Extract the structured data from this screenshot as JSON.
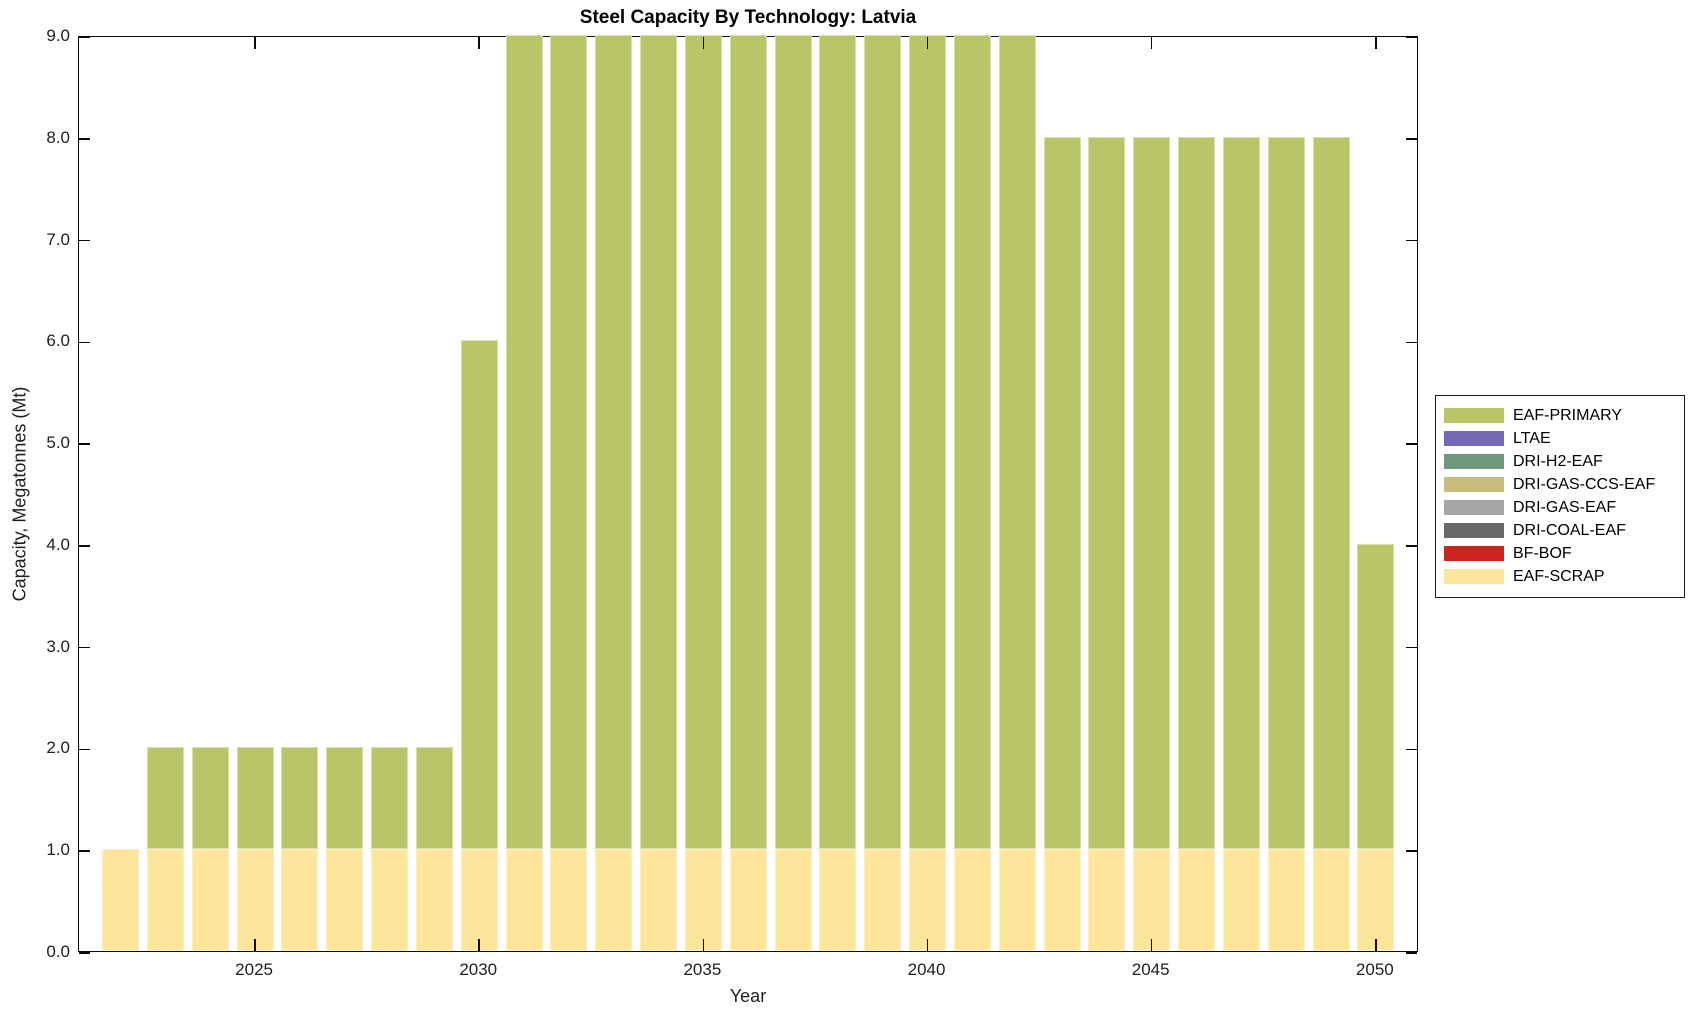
{
  "chart_data": {
    "type": "bar",
    "stacked": true,
    "title": "Steel Capacity By Technology: Latvia",
    "xlabel": "Year",
    "ylabel": "Capacity, Megatonnes (Mt)",
    "ylim": [
      0,
      9
    ],
    "grid": false,
    "legend_position": "right-outside",
    "years": [
      2022,
      2023,
      2024,
      2025,
      2026,
      2027,
      2028,
      2029,
      2030,
      2031,
      2032,
      2033,
      2034,
      2035,
      2036,
      2037,
      2038,
      2039,
      2040,
      2041,
      2042,
      2043,
      2044,
      2045,
      2046,
      2047,
      2048,
      2049,
      2050
    ],
    "series": [
      {
        "name": "EAF-SCRAP",
        "color": "#fde69b",
        "values": [
          1,
          1,
          1,
          1,
          1,
          1,
          1,
          1,
          1,
          1,
          1,
          1,
          1,
          1,
          1,
          1,
          1,
          1,
          1,
          1,
          1,
          1,
          1,
          1,
          1,
          1,
          1,
          1,
          1
        ]
      },
      {
        "name": "EAF-PRIMARY",
        "color": "#b9c566",
        "values": [
          0,
          1,
          1,
          1,
          1,
          1,
          1,
          1,
          5,
          8,
          8,
          8,
          8,
          8,
          8,
          8,
          8,
          8,
          8,
          8,
          8,
          7,
          7,
          7,
          7,
          7,
          7,
          7,
          3
        ]
      }
    ],
    "totals_by_year": [
      1,
      2,
      2,
      2,
      2,
      2,
      2,
      2,
      6,
      9,
      9,
      9,
      9,
      9,
      9,
      9,
      9,
      9,
      9,
      9,
      9,
      8,
      8,
      8,
      8,
      8,
      8,
      8,
      4
    ],
    "x_ticks": [
      {
        "v": 2025,
        "label": "2025"
      },
      {
        "v": 2030,
        "label": "2030"
      },
      {
        "v": 2035,
        "label": "2035"
      },
      {
        "v": 2040,
        "label": "2040"
      },
      {
        "v": 2045,
        "label": "2045"
      },
      {
        "v": 2050,
        "label": "2050"
      }
    ],
    "y_ticks": [
      {
        "v": 0,
        "label": "0.0"
      },
      {
        "v": 1,
        "label": "1.0"
      },
      {
        "v": 2,
        "label": "2.0"
      },
      {
        "v": 3,
        "label": "3.0"
      },
      {
        "v": 4,
        "label": "4.0"
      },
      {
        "v": 5,
        "label": "5.0"
      },
      {
        "v": 6,
        "label": "6.0"
      },
      {
        "v": 7,
        "label": "7.0"
      },
      {
        "v": 8,
        "label": "8.0"
      },
      {
        "v": 9,
        "label": "9.0"
      }
    ],
    "legend": [
      {
        "label": "EAF-PRIMARY",
        "color": "#b9c566"
      },
      {
        "label": "LTAE",
        "color": "#7568b5"
      },
      {
        "label": "DRI-H2-EAF",
        "color": "#6f977d"
      },
      {
        "label": "DRI-GAS-CCS-EAF",
        "color": "#c8bd7c"
      },
      {
        "label": "DRI-GAS-EAF",
        "color": "#a6a6a6"
      },
      {
        "label": "DRI-COAL-EAF",
        "color": "#696969"
      },
      {
        "label": "BF-BOF",
        "color": "#ce2420"
      },
      {
        "label": "EAF-SCRAP",
        "color": "#fde69b"
      }
    ],
    "axis_color": "#0a0a0a",
    "background_color": "#ffffff"
  }
}
